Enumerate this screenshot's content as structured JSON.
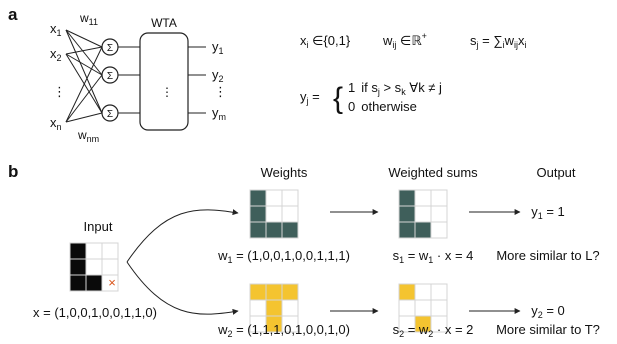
{
  "panel_a": {
    "label": "a",
    "inputs": {
      "x1": {
        "base": "x",
        "sub": "1"
      },
      "x2": {
        "base": "x",
        "sub": "2"
      },
      "xn": {
        "base": "x",
        "sub": "n"
      },
      "ellipsis": "⋮"
    },
    "weights": {
      "w11": {
        "base": "w",
        "sub": "11"
      },
      "wnm": {
        "base": "w",
        "sub": "nm"
      }
    },
    "sum_symbol": "Σ",
    "wta_label": "WTA",
    "outputs": {
      "y1": {
        "base": "y",
        "sub": "1"
      },
      "y2": {
        "base": "y",
        "sub": "2"
      },
      "ym": {
        "base": "y",
        "sub": "m"
      },
      "ellipsis": "⋮"
    },
    "equations": {
      "xi_def": {
        "base": "x",
        "sub": "i",
        "rest": " ∈{0,1}"
      },
      "wij_def": {
        "base": "w",
        "sub": "ij",
        "rest": " ∈ℝ",
        "sup": "+"
      },
      "sj_def": {
        "base": "s",
        "sub": "j",
        "eq": " = ∑",
        "sub2": "i",
        "w": "w",
        "sub3": "ij",
        "x": "x",
        "sub4": "i"
      },
      "yj_lhs": {
        "base": "y",
        "sub": "j",
        "eq": " = "
      },
      "brace": "{",
      "case1": {
        "value": "1",
        "cond_prefix": "if s",
        "sub_j": "j",
        "gt": " > s",
        "sub_k": "k",
        "tail": " ∀k ≠ j"
      },
      "case2": {
        "value": "0",
        "cond": "otherwise"
      }
    }
  },
  "panel_b": {
    "label": "b",
    "column_headers": {
      "weights": "Weights",
      "weighted_sums": "Weighted sums",
      "output": "Output"
    },
    "input": {
      "title": "Input",
      "vector": "x = (1,0,0,1,0,0,1,1,0)",
      "cells": [
        1,
        0,
        0,
        1,
        0,
        0,
        1,
        1,
        0
      ],
      "mark": "×"
    },
    "rows": [
      {
        "weight_label": {
          "base": "w",
          "sub": "1",
          "rest": " = (1,0,0,1,0,0,1,1,1)"
        },
        "weight_cells": [
          1,
          0,
          0,
          1,
          0,
          0,
          1,
          1,
          1
        ],
        "sum_label": {
          "base": "s",
          "sub": "1",
          "eq": " = w",
          "sub2": "1",
          "rest": " · x = 4"
        },
        "sum_cells": [
          1,
          0,
          0,
          1,
          0,
          0,
          1,
          1,
          0
        ],
        "output_label": {
          "base": "y",
          "sub": "1",
          "rest": " = 1"
        },
        "question": "More similar to L?"
      },
      {
        "weight_label": {
          "base": "w",
          "sub": "2",
          "rest": " = (1,1,1,0,1,0,0,1,0)"
        },
        "weight_cells": [
          1,
          1,
          1,
          0,
          1,
          0,
          0,
          1,
          0
        ],
        "sum_label": {
          "base": "s",
          "sub": "2",
          "eq": " = w",
          "sub2": "2",
          "rest": " · x = 2"
        },
        "sum_cells": [
          1,
          0,
          0,
          0,
          0,
          0,
          0,
          1,
          0
        ],
        "output_label": {
          "base": "y",
          "sub": "2",
          "rest": " = 0"
        },
        "question": "More similar to T?"
      }
    ]
  },
  "colors": {
    "input_fill": "#0a0a0a",
    "row1_fill": "#3f5f5b",
    "row2_fill": "#f4c430",
    "mark": "#d9541a",
    "grid_line": "#d4d4d4",
    "line": "#222222"
  }
}
